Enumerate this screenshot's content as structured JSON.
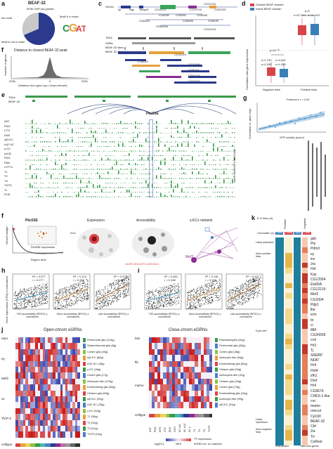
{
  "figure": {
    "panel_labels": [
      "a",
      "b",
      "c",
      "d",
      "e",
      "f",
      "g",
      "h",
      "i",
      "j",
      "k"
    ]
  },
  "panel_a": {
    "title": "BEAF-32",
    "subtitle": "5036 ChIP-seq peaks",
    "pie_labels": [
      "No motif",
      "Motif & in brain",
      "Motif & not in brain"
    ],
    "colors": {
      "no_motif": "#c9c9c9",
      "motif_in_brain": "#2b3a8c",
      "motif_not_in_brain": "#7f8fcf"
    }
  },
  "panel_b": {
    "title": "Distance to closest BEAF-32 peak",
    "ylabel": "Number of genes",
    "xlabel": "Distance from gene (up-/ down-stream)",
    "ticks": [
      "-200k",
      "0",
      "200k"
    ]
  },
  "panel_c": {
    "rows": [
      "Genes",
      "TADs",
      "GRBs",
      "BEAF-32 sites",
      "BEAF-32 domains"
    ],
    "genes": [
      "Ilp",
      "Rgn",
      "Tango5",
      "CG11211",
      "CG11700",
      "CG11703",
      "CG31207",
      "CG5282",
      "CG5262",
      "CG5346",
      "CG6304",
      "CG6406",
      "CG6426",
      "CRA6204",
      "CG31215",
      "CG6924",
      "CG11210",
      "CG11300",
      "CG5219",
      "CG31174",
      "CG31207"
    ],
    "colors": {
      "domain_a": "#2b3a8c",
      "domain_b": "#e6a23c",
      "domain_c": "#3aa55a",
      "domain_d": "#8b2c8f"
    }
  },
  "panel_d": {
    "legend": [
      "Outside BEAF domain",
      "Inside BEAF domain"
    ],
    "ylabel": "Correlation with gene expression",
    "groups": [
      "Negative links",
      "Positive links"
    ],
    "annotations": [
      "p<10⁻³²",
      "p=0",
      "n=1,740",
      "n=4,002",
      "n=1,050",
      "n=1,059",
      "n=57,284",
      "n=41,403"
    ],
    "colors": {
      "outside": "#d9434a",
      "inside": "#3a7fb8"
    }
  },
  "panel_e": {
    "title": "Pkc53E",
    "tracks": [
      "TADs",
      "BEAF-32",
      "AST",
      "PNG",
      "CTX",
      "ENS",
      "α/β-KC",
      "α'/β'-KC",
      "γ-KC",
      "γ/α'/β'",
      "PNG",
      "PAN",
      "Cl/TTn",
      "T1",
      "T2",
      "T3",
      "T4/T5",
      "Tt",
      "PLM"
    ],
    "coord": "chr2R:16914373-16915411",
    "colors": {
      "track": "#3a9a4a",
      "arc": "#1e3a7a",
      "highlight": "#9aa6d8"
    }
  },
  "panel_f": {
    "gene": "Pkc53E",
    "ylabel": "Genie3 weight",
    "xlabel": "Region rank",
    "subtitles": [
      "Expression",
      "Accessibility",
      "γ-KCs network"
    ],
    "labels": [
      "KCs",
      "Pkc53E expression",
      "Mef2",
      "toy"
    ],
    "coord": "chr2R:16914373-16915411"
  },
  "panel_g": {
    "ylabel": "Correlation w. gene expr.",
    "xlabel": "GFP activity (score)",
    "stat": "Pearson's r = 0.40"
  },
  "panel_h": {
    "ylabel": "Gene expression (CPM) z-normalized",
    "subplots": [
      {
        "xlabel": "TSS accessibility (RPGC) z-normalized",
        "r2": "R² = 0.077",
        "rpearson": "r = 0.277"
      },
      {
        "xlabel": "Gene accessibility (RPGC) z-normalized",
        "r2": "R² = 0.124",
        "rpearson": "r = 0.352"
      },
      {
        "xlabel": "Link accessibility (RPGC) z-normalized",
        "r2": "R² = 0.207",
        "rpearson": "r = 0.455"
      }
    ],
    "colors": {
      "fit1": "#4aa3c8",
      "fit2": "#e3a85a",
      "fit3": "#b07a3a"
    }
  },
  "panel_i": {
    "subplots": [
      {
        "xlabel": "TSS accessibility (RPGC) z-normalized",
        "r2": "R² = 0.084",
        "rpearson": "r = 0.289"
      },
      {
        "xlabel": "Gene accessibility (RPGC) z-normalized",
        "r2": "R² = 0.118",
        "rpearson": "r = 0.343"
      },
      {
        "xlabel": "Link accessibility (RPGC) z-normalized",
        "r2": "R² = 0.227",
        "rpearson": "r = 0.476"
      }
    ]
  },
  "panel_j": {
    "open_title": "Open-chrom eGRNs",
    "close_title": "Close-chrom eGRNs",
    "open_tfs": [
      "repo",
      "ey",
      "Mef2",
      "oc",
      "TfAP-2",
      "celltype"
    ],
    "close_tfs": [
      "lola",
      "ftk",
      "mamo",
      "celltype"
    ],
    "open_labels": [
      "Perineurial glia (114g)",
      "Subperineurial glia (8g)",
      "Cortex glia (40g)",
      "α/β-KC (68g)",
      "α'/β'-KC (35g)",
      "γ-KC (28g)",
      "Cortex glia (17g)",
      "Astrocyte-like (123g)",
      "Ensheathing glia (38g)",
      "Chiasm glia (69g)",
      "α/β-KC (26g)",
      "α'/β'-KC (26g)",
      "γ-KC (54g)",
      "T1 (36g)",
      "T2 (32g)",
      "T3 (31g)",
      "T4/T5 (24g)"
    ],
    "close_labels": [
      "Plasmatocytes (61g)",
      "Perineurial glia (28g)",
      "Cortex glia (38g)",
      "Astrocyte-like (84g)",
      "Ensheathing glia (84g)",
      "Chiasm glia (39g)",
      "Astrocytes-like (41g)",
      "Chiasm glia (99g)",
      "Cortex glia (73g)",
      "Ensheathing glia (15g)",
      "Astrocyte-like (99g)",
      "α/β-KC (24g)"
    ],
    "celltypes": [
      "AST",
      "PNG",
      "SPG",
      "CTX",
      "ENS",
      "CHG",
      "KC α/β",
      "KC α'/β'",
      "KC γ",
      "T1",
      "T2",
      "T3",
      "T4/T5"
    ],
    "celltypes_close": [
      "AST",
      "PNG",
      "SPG",
      "CTX",
      "ENS",
      "CHG",
      "KC α/β",
      "KC α'/β'",
      "KC γ",
      "T1",
      "T2",
      "T3",
      "T4/T5"
    ],
    "legend": {
      "tf_expression": "TF expression",
      "egrn_enrichment": "eGRN enr. on markers",
      "nes": "NES",
      "log_fc": "log(FC)"
    }
  },
  "panel_k": {
    "header": "E-G links (4)",
    "columns": [
      "Positive",
      "Negative"
    ],
    "chromatin": "Chromatin (1):",
    "open_close": [
      "Open",
      "Close",
      "Open",
      "Close"
    ],
    "side_labels": [
      "Likely activators",
      "More positive links",
      "Dual role?",
      "Likely repressors",
      "More negative links"
    ],
    "bottom_labels": [
      "Row-scaled",
      "Max num genes"
    ],
    "tfs": [
      "gsb",
      "Ptx",
      "Pdm3",
      "ey",
      "inv",
      "Jra",
      "Hsf",
      "Kay",
      "CG12054",
      "Ets65A",
      "CG12219",
      "Mef2",
      "CG3304",
      "Pdp1",
      "lbe",
      "erm",
      "br",
      "ci",
      "Mitf",
      "CG34266",
      "crol",
      "Hr3",
      "Tj",
      "SREBP",
      "NFAT",
      "Hr4",
      "Hnf4",
      "zfh1",
      "Dref",
      "Hr4",
      "CG9676",
      "CHES-1-like",
      "cnc",
      "mamo",
      "onecut",
      "Cp190",
      "BEAF-32",
      "Cbf",
      "Zw",
      "Trl",
      "CoRest"
    ]
  }
}
